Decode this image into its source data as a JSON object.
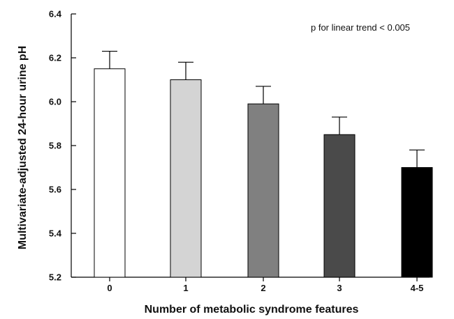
{
  "chart_data": {
    "type": "bar",
    "categories": [
      "0",
      "1",
      "2",
      "3",
      "4-5"
    ],
    "values": [
      6.15,
      6.1,
      5.99,
      5.85,
      5.7
    ],
    "error_upper": [
      6.23,
      6.18,
      6.07,
      5.93,
      5.78
    ],
    "colors": [
      "#ffffff",
      "#d4d4d4",
      "#808080",
      "#4a4a4a",
      "#000000"
    ],
    "title": "",
    "xlabel": "Number of metabolic syndrome features",
    "ylabel": "Multivariate-adjusted 24-hour urine pH",
    "ylim": [
      5.2,
      6.4
    ],
    "yticks": [
      5.2,
      5.4,
      5.6,
      5.8,
      6.0,
      6.2,
      6.4
    ],
    "ytick_labels": [
      "5.2",
      "5.4",
      "5.6",
      "5.8",
      "6.0",
      "6.2",
      "6.4"
    ],
    "annotation": "p for linear trend < 0.005",
    "grid": false,
    "legend": "none"
  }
}
